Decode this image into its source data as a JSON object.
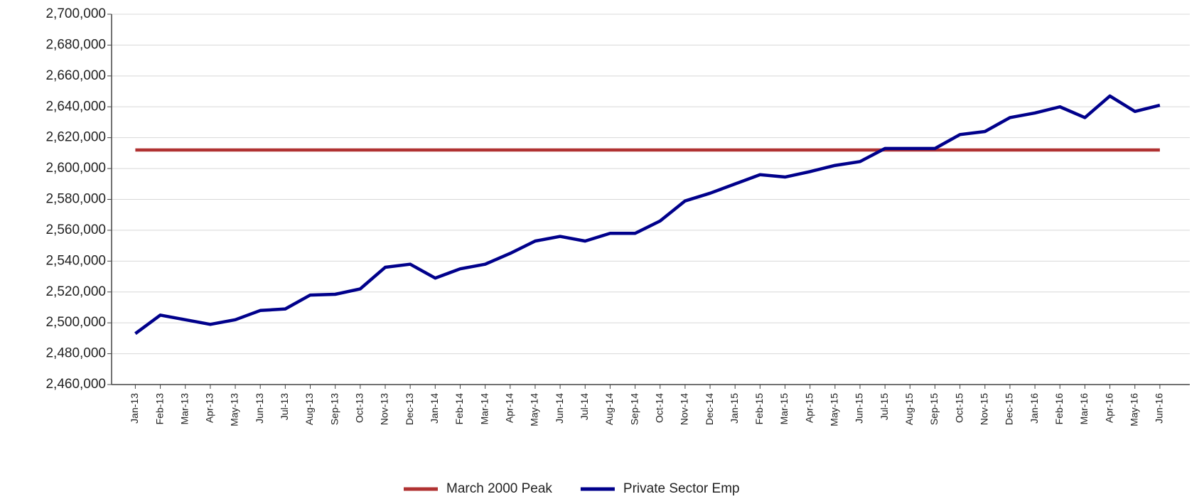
{
  "chart_data": {
    "type": "line",
    "categories": [
      "Jan-13",
      "Feb-13",
      "Mar-13",
      "Apr-13",
      "May-13",
      "Jun-13",
      "Jul-13",
      "Aug-13",
      "Sep-13",
      "Oct-13",
      "Nov-13",
      "Dec-13",
      "Jan-14",
      "Feb-14",
      "Mar-14",
      "Apr-14",
      "May-14",
      "Jun-14",
      "Jul-14",
      "Aug-14",
      "Sep-14",
      "Oct-14",
      "Nov-14",
      "Dec-14",
      "Jan-15",
      "Feb-15",
      "Mar-15",
      "Apr-15",
      "May-15",
      "Jun-15",
      "Jul-15",
      "Aug-15",
      "Sep-15",
      "Oct-15",
      "Nov-15",
      "Dec-15",
      "Jan-16",
      "Feb-16",
      "Mar-16",
      "Apr-16",
      "May-16",
      "Jun-16"
    ],
    "series": [
      {
        "name": "March 2000 Peak",
        "color": "#b03232",
        "values": [
          2612000,
          2612000,
          2612000,
          2612000,
          2612000,
          2612000,
          2612000,
          2612000,
          2612000,
          2612000,
          2612000,
          2612000,
          2612000,
          2612000,
          2612000,
          2612000,
          2612000,
          2612000,
          2612000,
          2612000,
          2612000,
          2612000,
          2612000,
          2612000,
          2612000,
          2612000,
          2612000,
          2612000,
          2612000,
          2612000,
          2612000,
          2612000,
          2612000,
          2612000,
          2612000,
          2612000,
          2612000,
          2612000,
          2612000,
          2612000,
          2612000,
          2612000
        ]
      },
      {
        "name": "Private Sector Emp",
        "color": "#00008b",
        "values": [
          2493000,
          2505000,
          2502000,
          2499000,
          2502000,
          2508000,
          2509000,
          2518000,
          2518500,
          2522000,
          2536000,
          2538000,
          2529000,
          2535000,
          2538000,
          2545000,
          2553000,
          2556000,
          2553000,
          2558000,
          2558000,
          2566000,
          2579000,
          2584000,
          2590000,
          2596000,
          2594500,
          2598000,
          2602000,
          2604500,
          2613000,
          2613000,
          2613000,
          2622000,
          2624000,
          2633000,
          2636000,
          2640000,
          2633000,
          2647000,
          2637000,
          2641000
        ]
      }
    ],
    "ylim": [
      2460000,
      2700000
    ],
    "yticks": [
      {
        "value": 2460000,
        "label": "2,460,000"
      },
      {
        "value": 2480000,
        "label": "2,480,000"
      },
      {
        "value": 2500000,
        "label": "2,500,000"
      },
      {
        "value": 2520000,
        "label": "2,520,000"
      },
      {
        "value": 2540000,
        "label": "2,540,000"
      },
      {
        "value": 2560000,
        "label": "2,560,000"
      },
      {
        "value": 2580000,
        "label": "2,580,000"
      },
      {
        "value": 2600000,
        "label": "2,600,000"
      },
      {
        "value": 2620000,
        "label": "2,620,000"
      },
      {
        "value": 2640000,
        "label": "2,640,000"
      },
      {
        "value": 2660000,
        "label": "2,660,000"
      },
      {
        "value": 2680000,
        "label": "2,680,000"
      },
      {
        "value": 2700000,
        "label": "2,700,000"
      }
    ],
    "grid": true,
    "legend": "bottom"
  }
}
